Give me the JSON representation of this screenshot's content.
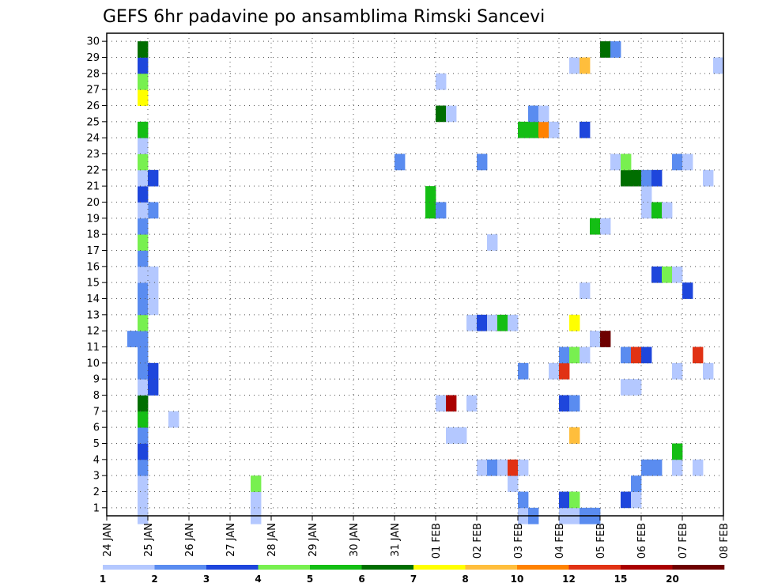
{
  "chart_data": {
    "type": "heatmap",
    "title": "GEFS 6hr padavine po ansamblima Rimski Sancevi",
    "xlabel": "",
    "ylabel": "",
    "x_tick_labels": [
      "24 JAN",
      "25 JAN",
      "26 JAN",
      "27 JAN",
      "28 JAN",
      "29 JAN",
      "30 JAN",
      "31 JAN",
      "01 FEB",
      "02 FEB",
      "03 FEB",
      "04 FEB",
      "05 FEB",
      "06 FEB",
      "07 FEB",
      "08 FEB"
    ],
    "x_units": "6-hour steps from 24 JAN 00Z",
    "xlim": [
      0,
      60
    ],
    "y_tick_labels": [
      "1",
      "2",
      "3",
      "4",
      "5",
      "6",
      "7",
      "8",
      "9",
      "10",
      "11",
      "12",
      "13",
      "14",
      "15",
      "16",
      "17",
      "18",
      "19",
      "20",
      "21",
      "22",
      "23",
      "24",
      "25",
      "26",
      "27",
      "28",
      "29",
      "30"
    ],
    "ylim": [
      0,
      30
    ],
    "grid": true,
    "colorbar": {
      "position": "bottom",
      "labels": [
        "1",
        "2",
        "3",
        "4",
        "5",
        "6",
        "7",
        "8",
        "10",
        "12",
        "15",
        "20"
      ],
      "colors": [
        "#b4c8ff",
        "#5a8cf0",
        "#1e46dc",
        "#78f050",
        "#14be14",
        "#006e00",
        "#ffff00",
        "#ffbe3c",
        "#ff8200",
        "#e13214",
        "#aa0000",
        "#6e0000"
      ]
    },
    "levels_note": "cells: [member, step, level]; level index maps to colorbar.colors",
    "cells": [
      [
        1,
        3,
        0
      ],
      [
        1,
        14,
        0
      ],
      [
        1,
        40,
        0
      ],
      [
        1,
        41,
        1
      ],
      [
        1,
        44,
        0
      ],
      [
        1,
        45,
        0
      ],
      [
        1,
        46,
        1
      ],
      [
        1,
        47,
        1
      ],
      [
        2,
        3,
        0
      ],
      [
        2,
        14,
        0
      ],
      [
        2,
        40,
        1
      ],
      [
        2,
        44,
        2
      ],
      [
        2,
        45,
        3
      ],
      [
        2,
        50,
        2
      ],
      [
        2,
        51,
        0
      ],
      [
        3,
        3,
        0
      ],
      [
        3,
        14,
        3
      ],
      [
        3,
        39,
        0
      ],
      [
        3,
        51,
        1
      ],
      [
        4,
        3,
        1
      ],
      [
        4,
        36,
        0
      ],
      [
        4,
        37,
        1
      ],
      [
        4,
        38,
        0
      ],
      [
        4,
        39,
        9
      ],
      [
        4,
        40,
        0
      ],
      [
        4,
        52,
        1
      ],
      [
        4,
        53,
        1
      ],
      [
        4,
        55,
        0
      ],
      [
        4,
        57,
        0
      ],
      [
        5,
        3,
        2
      ],
      [
        5,
        55,
        4
      ],
      [
        6,
        3,
        1
      ],
      [
        6,
        33,
        0
      ],
      [
        6,
        34,
        0
      ],
      [
        6,
        45,
        7
      ],
      [
        7,
        3,
        4
      ],
      [
        7,
        6,
        0
      ],
      [
        8,
        3,
        5
      ],
      [
        8,
        32,
        0
      ],
      [
        8,
        33,
        10
      ],
      [
        8,
        35,
        0
      ],
      [
        8,
        44,
        2
      ],
      [
        8,
        45,
        1
      ],
      [
        9,
        3,
        0
      ],
      [
        9,
        4,
        2
      ],
      [
        9,
        50,
        0
      ],
      [
        9,
        51,
        0
      ],
      [
        10,
        3,
        1
      ],
      [
        10,
        4,
        2
      ],
      [
        10,
        40,
        1
      ],
      [
        10,
        43,
        0
      ],
      [
        10,
        44,
        9
      ],
      [
        10,
        55,
        0
      ],
      [
        10,
        58,
        0
      ],
      [
        11,
        3,
        1
      ],
      [
        11,
        44,
        1
      ],
      [
        11,
        45,
        3
      ],
      [
        11,
        46,
        0
      ],
      [
        11,
        50,
        1
      ],
      [
        11,
        51,
        9
      ],
      [
        11,
        52,
        2
      ],
      [
        11,
        57,
        9
      ],
      [
        12,
        2,
        1
      ],
      [
        12,
        3,
        1
      ],
      [
        12,
        47,
        0
      ],
      [
        12,
        48,
        11
      ],
      [
        13,
        3,
        3
      ],
      [
        13,
        35,
        0
      ],
      [
        13,
        36,
        2
      ],
      [
        13,
        37,
        0
      ],
      [
        13,
        38,
        4
      ],
      [
        13,
        39,
        0
      ],
      [
        13,
        45,
        6
      ],
      [
        14,
        3,
        1
      ],
      [
        14,
        4,
        0
      ],
      [
        15,
        3,
        1
      ],
      [
        15,
        4,
        0
      ],
      [
        15,
        46,
        0
      ],
      [
        15,
        56,
        2
      ],
      [
        16,
        3,
        0
      ],
      [
        16,
        4,
        0
      ],
      [
        16,
        53,
        2
      ],
      [
        16,
        54,
        3
      ],
      [
        16,
        55,
        0
      ],
      [
        17,
        3,
        1
      ],
      [
        18,
        3,
        3
      ],
      [
        18,
        37,
        0
      ],
      [
        19,
        3,
        1
      ],
      [
        19,
        47,
        4
      ],
      [
        19,
        48,
        0
      ],
      [
        20,
        4,
        1
      ],
      [
        20,
        3,
        0
      ],
      [
        20,
        31,
        4
      ],
      [
        20,
        32,
        1
      ],
      [
        20,
        52,
        0
      ],
      [
        20,
        53,
        4
      ],
      [
        20,
        54,
        0
      ],
      [
        21,
        3,
        2
      ],
      [
        21,
        52,
        0
      ],
      [
        21,
        31,
        4
      ],
      [
        22,
        3,
        0
      ],
      [
        22,
        4,
        2
      ],
      [
        22,
        50,
        5
      ],
      [
        22,
        51,
        5
      ],
      [
        22,
        52,
        1
      ],
      [
        22,
        53,
        2
      ],
      [
        22,
        58,
        0
      ],
      [
        23,
        3,
        3
      ],
      [
        23,
        28,
        1
      ],
      [
        23,
        36,
        1
      ],
      [
        23,
        49,
        0
      ],
      [
        23,
        50,
        3
      ],
      [
        23,
        55,
        1
      ],
      [
        23,
        56,
        0
      ],
      [
        24,
        3,
        0
      ],
      [
        25,
        3,
        4
      ],
      [
        25,
        40,
        4
      ],
      [
        25,
        41,
        4
      ],
      [
        25,
        42,
        8
      ],
      [
        25,
        43,
        0
      ],
      [
        25,
        46,
        2
      ],
      [
        26,
        32,
        5
      ],
      [
        26,
        33,
        0
      ],
      [
        26,
        41,
        1
      ],
      [
        26,
        42,
        0
      ],
      [
        27,
        3,
        6
      ],
      [
        28,
        3,
        3
      ],
      [
        28,
        32,
        0
      ],
      [
        29,
        3,
        2
      ],
      [
        29,
        45,
        0
      ],
      [
        29,
        46,
        7
      ],
      [
        29,
        59,
        0
      ],
      [
        30,
        3,
        5
      ],
      [
        30,
        48,
        5
      ],
      [
        30,
        49,
        1
      ]
    ]
  }
}
